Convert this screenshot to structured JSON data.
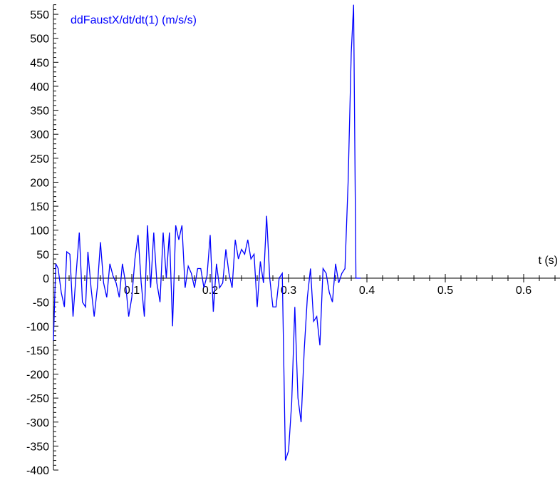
{
  "chart_data": {
    "type": "line",
    "title": "",
    "xlabel": "t (s)",
    "ylabel": "ddFaustX/dt/dt(1) (m/s/s)",
    "xlim": [
      0,
      0.65
    ],
    "ylim": [
      -400,
      570
    ],
    "grid": false,
    "colors": {
      "series": "#0000ff",
      "axis": "#000000"
    },
    "x_ticks": [
      {
        "value": 0.1,
        "label": "0.1"
      },
      {
        "value": 0.2,
        "label": "0.2"
      },
      {
        "value": 0.3,
        "label": "0.3"
      },
      {
        "value": 0.4,
        "label": "0.4"
      },
      {
        "value": 0.5,
        "label": "0.5"
      },
      {
        "value": 0.6,
        "label": "0.6"
      }
    ],
    "y_ticks": [
      {
        "value": 550,
        "label": "550"
      },
      {
        "value": 500,
        "label": "500"
      },
      {
        "value": 450,
        "label": "450"
      },
      {
        "value": 400,
        "label": "400"
      },
      {
        "value": 350,
        "label": "350"
      },
      {
        "value": 300,
        "label": "300"
      },
      {
        "value": 250,
        "label": "250"
      },
      {
        "value": 200,
        "label": "200"
      },
      {
        "value": 150,
        "label": "150"
      },
      {
        "value": 100,
        "label": "100"
      },
      {
        "value": 50,
        "label": "50"
      },
      {
        "value": 0,
        "label": "0"
      },
      {
        "value": -50,
        "label": "-50"
      },
      {
        "value": -100,
        "label": "-100"
      },
      {
        "value": -150,
        "label": "-150"
      },
      {
        "value": -200,
        "label": "-200"
      },
      {
        "value": -250,
        "label": "-250"
      },
      {
        "value": -300,
        "label": "-300"
      },
      {
        "value": -350,
        "label": "-350"
      },
      {
        "value": -400,
        "label": "-400"
      }
    ],
    "series": [
      {
        "name": "ddFaustX/dt/dt(1) (m/s/s)",
        "x": [
          0.0,
          0.003,
          0.006,
          0.01,
          0.014,
          0.017,
          0.021,
          0.025,
          0.029,
          0.033,
          0.037,
          0.041,
          0.044,
          0.048,
          0.052,
          0.056,
          0.06,
          0.064,
          0.068,
          0.072,
          0.076,
          0.08,
          0.084,
          0.088,
          0.092,
          0.096,
          0.1,
          0.104,
          0.108,
          0.112,
          0.116,
          0.12,
          0.124,
          0.128,
          0.132,
          0.136,
          0.14,
          0.144,
          0.148,
          0.152,
          0.156,
          0.16,
          0.164,
          0.168,
          0.172,
          0.176,
          0.18,
          0.184,
          0.188,
          0.192,
          0.196,
          0.2,
          0.204,
          0.208,
          0.212,
          0.216,
          0.22,
          0.224,
          0.228,
          0.232,
          0.236,
          0.24,
          0.244,
          0.248,
          0.252,
          0.256,
          0.26,
          0.264,
          0.268,
          0.272,
          0.276,
          0.28,
          0.284,
          0.288,
          0.292,
          0.296,
          0.3,
          0.304,
          0.308,
          0.312,
          0.316,
          0.32,
          0.324,
          0.328,
          0.332,
          0.336,
          0.34,
          0.344,
          0.348,
          0.352,
          0.356,
          0.36,
          0.364,
          0.368,
          0.372,
          0.376,
          0.38,
          0.383,
          0.386,
          0.389,
          0.392
        ],
        "y": [
          -130,
          30,
          20,
          -30,
          -60,
          55,
          50,
          -80,
          10,
          95,
          -50,
          -60,
          55,
          -20,
          -80,
          -20,
          75,
          -10,
          -40,
          30,
          5,
          -10,
          -40,
          30,
          -10,
          -80,
          -40,
          40,
          90,
          -10,
          -80,
          110,
          -20,
          95,
          -10,
          -50,
          95,
          0,
          95,
          -100,
          110,
          80,
          110,
          -20,
          25,
          10,
          -20,
          20,
          20,
          -20,
          5,
          90,
          -70,
          30,
          -20,
          -10,
          60,
          10,
          -20,
          80,
          40,
          60,
          50,
          80,
          40,
          50,
          -60,
          35,
          -10,
          130,
          0,
          -60,
          -60,
          0,
          10,
          -380,
          -360,
          -260,
          -60,
          -250,
          -300,
          -150,
          -40,
          20,
          -90,
          -80,
          -140,
          20,
          10,
          -30,
          -50,
          30,
          -10,
          10,
          20,
          200,
          470,
          570,
          0,
          0,
          0
        ]
      }
    ]
  }
}
